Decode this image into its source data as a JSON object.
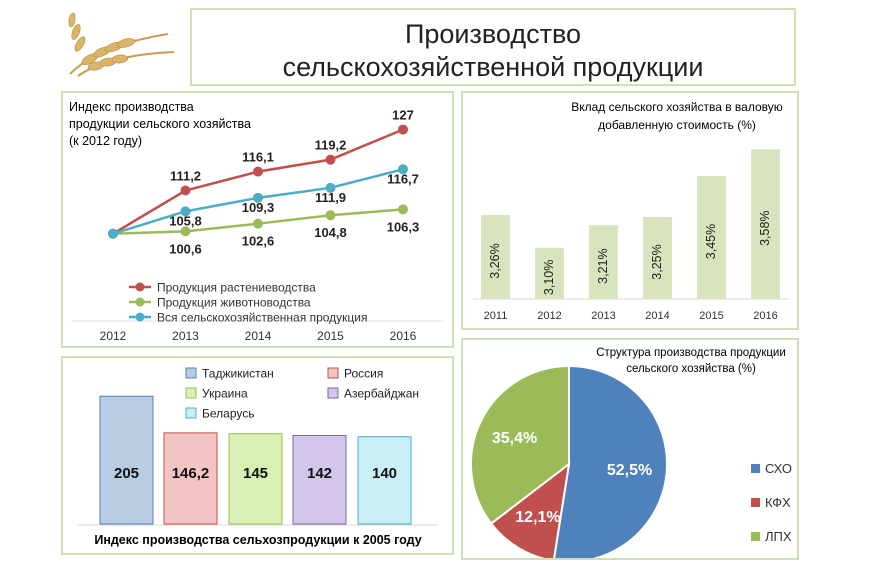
{
  "title_line1": "Производство",
  "title_line2": "сельскохозяйственной продукции",
  "chart_data": [
    {
      "type": "line",
      "title_lines": [
        "Индекс производства",
        "продукции сельского хозяйства",
        "(к 2012 году)"
      ],
      "x": [
        "2012",
        "2013",
        "2014",
        "2015",
        "2016"
      ],
      "ylim": [
        95,
        130
      ],
      "series": [
        {
          "name": "Продукция растениеводства",
          "color": "#c0504d",
          "values": [
            100,
            111.2,
            116.1,
            119.2,
            127
          ],
          "labels": [
            "",
            "111,2",
            "116,1",
            "119,2",
            "127"
          ]
        },
        {
          "name": "Продукция животноводства",
          "color": "#9bbb59",
          "values": [
            100,
            100.6,
            102.6,
            104.8,
            106.3
          ],
          "labels": [
            "",
            "100,6",
            "102,6",
            "104,8",
            "106,3"
          ]
        },
        {
          "name": "Вся сельскохозяйственная продукция",
          "color": "#4bacc6",
          "values": [
            100,
            105.8,
            109.3,
            111.9,
            116.7
          ],
          "labels": [
            "",
            "105,8",
            "109,3",
            "111,9",
            "116,7"
          ]
        }
      ]
    },
    {
      "type": "bar",
      "title_lines": [
        "Вклад сельского хозяйства в валовую",
        "добавленную стоимость (%)"
      ],
      "categories": [
        "2011",
        "2012",
        "2013",
        "2014",
        "2015",
        "2016"
      ],
      "values": [
        3.26,
        3.1,
        3.21,
        3.25,
        3.45,
        3.58
      ],
      "labels": [
        "3,26%",
        "3,10%",
        "3,21%",
        "3,25%",
        "3,45%",
        "3,58%"
      ],
      "ylim": [
        2.85,
        3.65
      ],
      "color": "#d7e4bd"
    },
    {
      "type": "bar",
      "title": "Индекс производства сельхозпродукции к 2005 году",
      "categories": [
        "Таджикистан",
        "Россия",
        "Украина",
        "Азербайджан",
        "Беларусь"
      ],
      "values": [
        205,
        146.2,
        145,
        142,
        140
      ],
      "labels": [
        "205",
        "146,2",
        "145",
        "142",
        "140"
      ],
      "ylim": [
        0,
        215
      ],
      "fill_colors": [
        "#b8cce4",
        "#f2c4c4",
        "#d9efb3",
        "#d4c6ea",
        "#c9eef6"
      ],
      "border_colors": [
        "#4f81bd",
        "#c0504d",
        "#9bbb59",
        "#8064a2",
        "#4bacc6"
      ]
    },
    {
      "type": "pie",
      "title_lines": [
        "Структура производства продукции",
        "сельского хозяйства (%)"
      ],
      "slices": [
        {
          "name": "СХО",
          "value": 52.5,
          "label": "52,5%",
          "color": "#4f81bd"
        },
        {
          "name": "КФХ",
          "value": 12.1,
          "label": "12,1%",
          "color": "#c0504d"
        },
        {
          "name": "ЛПХ",
          "value": 35.4,
          "label": "35,4%",
          "color": "#9bbb59"
        }
      ]
    }
  ],
  "icons": {
    "logo": "wheat-ears-icon"
  }
}
